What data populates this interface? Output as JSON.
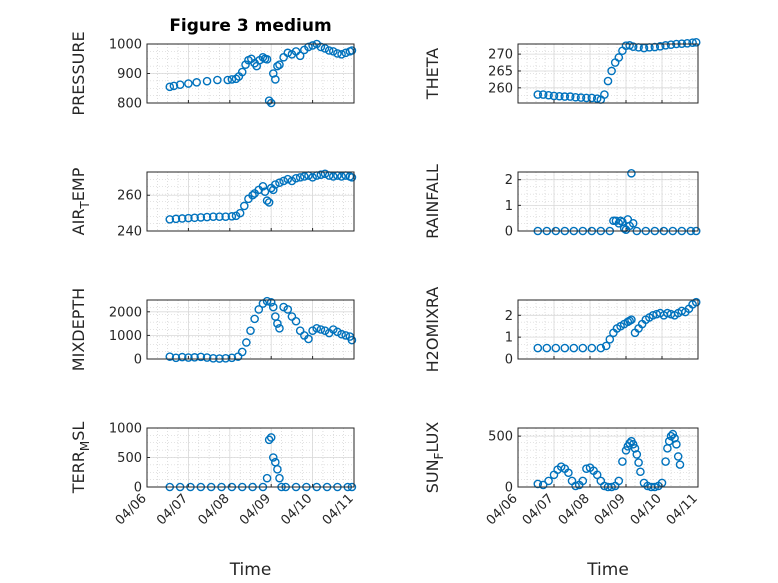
{
  "figure": {
    "title": "Figure 3 medium",
    "marker_color": "#0072BD"
  },
  "chart_data": [
    {
      "id": "pressure",
      "type": "scatter",
      "title": "Figure 3 medium",
      "ylabel": "PRESSURE",
      "ylim": [
        800,
        1000
      ],
      "yticks": [
        800,
        900,
        1000
      ],
      "xlim": [
        0,
        5
      ],
      "xticks": [],
      "xlabel": "",
      "grid": "on",
      "series": [
        {
          "x": [
            0.55,
            0.65,
            0.8,
            1.0,
            1.2,
            1.45,
            1.7,
            1.95,
            2.05,
            2.15,
            2.22,
            2.3,
            2.38,
            2.45,
            2.52,
            2.6,
            2.65,
            2.72,
            2.8,
            2.85,
            2.9,
            2.95,
            3.0,
            3.05,
            3.1,
            3.15,
            3.2,
            3.3,
            3.4,
            3.5,
            3.6,
            3.7,
            3.8,
            3.9,
            4.0,
            4.1,
            4.2,
            4.3,
            4.4,
            4.5,
            4.6,
            4.7,
            4.8,
            4.9,
            4.95
          ],
          "y": [
            855,
            858,
            862,
            866,
            870,
            874,
            878,
            878,
            880,
            882,
            890,
            905,
            930,
            945,
            950,
            935,
            925,
            945,
            955,
            950,
            948,
            808,
            800,
            900,
            880,
            925,
            930,
            955,
            970,
            965,
            975,
            960,
            980,
            990,
            995,
            1000,
            990,
            985,
            978,
            975,
            968,
            965,
            970,
            975,
            978
          ]
        }
      ]
    },
    {
      "id": "theta",
      "type": "scatter",
      "ylabel": "THETA",
      "ylim": [
        255.5,
        273
      ],
      "yticks": [
        260,
        265,
        270
      ],
      "xlim": [
        0,
        5
      ],
      "xticks": [],
      "xlabel": "",
      "grid": "on",
      "series": [
        {
          "x": [
            0.55,
            0.7,
            0.85,
            1.0,
            1.15,
            1.3,
            1.45,
            1.6,
            1.75,
            1.9,
            2.05,
            2.2,
            2.3,
            2.4,
            2.5,
            2.6,
            2.7,
            2.8,
            2.9,
            3.0,
            3.1,
            3.2,
            3.35,
            3.5,
            3.65,
            3.8,
            3.95,
            4.1,
            4.25,
            4.4,
            4.55,
            4.7,
            4.85,
            4.95
          ],
          "y": [
            258,
            258,
            257.8,
            257.6,
            257.5,
            257.4,
            257.4,
            257.2,
            257.1,
            257,
            257,
            256.8,
            256.5,
            258,
            262,
            265,
            267.5,
            269,
            271,
            272.5,
            272.6,
            272.2,
            272,
            271.8,
            272,
            272.1,
            272.3,
            272.6,
            272.8,
            273,
            273.1,
            273.2,
            273.4,
            273.5
          ]
        }
      ]
    },
    {
      "id": "air_temp",
      "type": "scatter",
      "ylabel": "AIR_TEMP",
      "ylim": [
        240,
        273
      ],
      "yticks": [
        240,
        260
      ],
      "xlim": [
        0,
        5
      ],
      "xticks": [],
      "xlabel": "",
      "grid": "on",
      "series": [
        {
          "x": [
            0.55,
            0.7,
            0.85,
            1.0,
            1.15,
            1.3,
            1.45,
            1.6,
            1.75,
            1.9,
            2.05,
            2.15,
            2.25,
            2.35,
            2.45,
            2.55,
            2.6,
            2.7,
            2.8,
            2.85,
            2.9,
            2.95,
            3.0,
            3.05,
            3.1,
            3.2,
            3.3,
            3.4,
            3.5,
            3.6,
            3.7,
            3.8,
            3.9,
            4.0,
            4.1,
            4.2,
            4.3,
            4.4,
            4.5,
            4.6,
            4.7,
            4.8,
            4.9,
            4.95
          ],
          "y": [
            246.5,
            246.8,
            247,
            247.2,
            247.4,
            247.6,
            247.8,
            248,
            248,
            248,
            248.2,
            248.5,
            250,
            254,
            258,
            260,
            261,
            263,
            265,
            262,
            257,
            256,
            264,
            263,
            266,
            267,
            268,
            269,
            268,
            269.5,
            270,
            270.5,
            271,
            270,
            271,
            271.5,
            272,
            271,
            270.5,
            271,
            270.5,
            271,
            270.5,
            270
          ]
        }
      ]
    },
    {
      "id": "rainfall",
      "type": "scatter",
      "ylabel": "RAINFALL",
      "ylim": [
        0,
        2.3
      ],
      "yticks": [
        0,
        1,
        2
      ],
      "xlim": [
        0,
        5
      ],
      "xticks": [],
      "xlabel": "",
      "grid": "on",
      "series": [
        {
          "x": [
            0.55,
            0.8,
            1.05,
            1.3,
            1.55,
            1.8,
            2.05,
            2.3,
            2.55,
            2.65,
            2.72,
            2.8,
            2.85,
            2.9,
            2.95,
            3.0,
            3.05,
            3.1,
            3.15,
            3.2,
            3.3,
            3.55,
            3.8,
            4.05,
            4.3,
            4.55,
            4.8,
            4.95
          ],
          "y": [
            0,
            0,
            0,
            0,
            0,
            0,
            0,
            0,
            0,
            0.4,
            0.4,
            0.3,
            0.4,
            0.35,
            0.1,
            0.05,
            0.45,
            0.2,
            2.25,
            0.3,
            0,
            0,
            0,
            0,
            0,
            0,
            0,
            0
          ]
        }
      ]
    },
    {
      "id": "mixdepth",
      "type": "scatter",
      "ylabel": "MIXDEPTH",
      "ylim": [
        0,
        2500
      ],
      "yticks": [
        0,
        1000,
        2000
      ],
      "xlim": [
        0,
        5
      ],
      "xticks": [],
      "xlabel": "",
      "grid": "on",
      "series": [
        {
          "x": [
            0.55,
            0.7,
            0.85,
            1.0,
            1.15,
            1.3,
            1.45,
            1.6,
            1.75,
            1.9,
            2.05,
            2.2,
            2.3,
            2.4,
            2.5,
            2.6,
            2.7,
            2.8,
            2.9,
            3.0,
            3.05,
            3.1,
            3.15,
            3.2,
            3.3,
            3.4,
            3.5,
            3.6,
            3.7,
            3.8,
            3.9,
            4.0,
            4.1,
            4.2,
            4.3,
            4.4,
            4.5,
            4.6,
            4.7,
            4.8,
            4.9,
            4.95
          ],
          "y": [
            100,
            50,
            80,
            60,
            70,
            90,
            60,
            30,
            20,
            30,
            50,
            100,
            300,
            700,
            1200,
            1700,
            2100,
            2350,
            2450,
            2400,
            2200,
            1800,
            1500,
            1300,
            2200,
            2100,
            1800,
            1600,
            1200,
            1000,
            850,
            1200,
            1300,
            1250,
            1200,
            1100,
            1250,
            1150,
            1050,
            1000,
            950,
            800
          ]
        }
      ]
    },
    {
      "id": "h2omixra",
      "type": "scatter",
      "ylabel": "H2OMIXRA",
      "ylim": [
        0,
        2.7
      ],
      "yticks": [
        0,
        1,
        2
      ],
      "xlim": [
        0,
        5
      ],
      "xticks": [],
      "xlabel": "",
      "grid": "on",
      "series": [
        {
          "x": [
            0.55,
            0.8,
            1.05,
            1.3,
            1.55,
            1.8,
            2.05,
            2.3,
            2.45,
            2.55,
            2.65,
            2.75,
            2.85,
            2.95,
            3.05,
            3.1,
            3.15,
            3.25,
            3.35,
            3.45,
            3.55,
            3.65,
            3.75,
            3.85,
            3.95,
            4.05,
            4.15,
            4.25,
            4.35,
            4.45,
            4.55,
            4.65,
            4.75,
            4.85,
            4.95
          ],
          "y": [
            0.5,
            0.5,
            0.5,
            0.5,
            0.5,
            0.5,
            0.5,
            0.5,
            0.6,
            0.9,
            1.2,
            1.4,
            1.5,
            1.6,
            1.7,
            1.75,
            1.8,
            1.2,
            1.4,
            1.6,
            1.8,
            1.9,
            2.0,
            2.05,
            2.1,
            2.0,
            2.1,
            2.05,
            2.0,
            2.1,
            2.2,
            2.15,
            2.3,
            2.5,
            2.6
          ]
        }
      ]
    },
    {
      "id": "terr_msl",
      "type": "scatter",
      "ylabel": "TERR_MSL",
      "ylim": [
        0,
        1000
      ],
      "yticks": [
        0,
        500,
        1000
      ],
      "xlim": [
        0,
        5
      ],
      "xticks": [
        0,
        1,
        2,
        3,
        4,
        5
      ],
      "xticklabels": [
        "04/06",
        "04/07",
        "04/08",
        "04/09",
        "04/10",
        "04/11"
      ],
      "xlabel": "Time",
      "grid": "on",
      "series": [
        {
          "x": [
            0.55,
            0.8,
            1.05,
            1.3,
            1.55,
            1.8,
            2.05,
            2.3,
            2.55,
            2.8,
            2.9,
            2.95,
            3.0,
            3.05,
            3.1,
            3.15,
            3.2,
            3.25,
            3.35,
            3.6,
            3.85,
            4.1,
            4.35,
            4.6,
            4.85,
            4.95
          ],
          "y": [
            0,
            0,
            0,
            0,
            0,
            0,
            0,
            0,
            0,
            0,
            150,
            800,
            840,
            500,
            420,
            300,
            150,
            0,
            0,
            0,
            0,
            0,
            0,
            0,
            0,
            0
          ]
        }
      ]
    },
    {
      "id": "sun_flux",
      "type": "scatter",
      "ylabel": "SUN_FLUX",
      "ylim": [
        0,
        580
      ],
      "yticks": [
        0,
        500
      ],
      "xlim": [
        0,
        5
      ],
      "xticks": [
        0,
        1,
        2,
        3,
        4,
        5
      ],
      "xticklabels": [
        "04/06",
        "04/07",
        "04/08",
        "04/09",
        "04/10",
        "04/11"
      ],
      "xlabel": "Time",
      "grid": "on",
      "series": [
        {
          "x": [
            0.55,
            0.7,
            0.85,
            1.0,
            1.1,
            1.2,
            1.3,
            1.4,
            1.5,
            1.6,
            1.7,
            1.8,
            1.9,
            2.0,
            2.1,
            2.2,
            2.3,
            2.4,
            2.5,
            2.6,
            2.7,
            2.8,
            2.9,
            3.0,
            3.05,
            3.1,
            3.15,
            3.2,
            3.25,
            3.3,
            3.35,
            3.4,
            3.5,
            3.6,
            3.7,
            3.8,
            3.9,
            4.0,
            4.1,
            4.15,
            4.2,
            4.25,
            4.3,
            4.35,
            4.4,
            4.45,
            4.5
          ],
          "y": [
            30,
            20,
            60,
            120,
            170,
            200,
            180,
            140,
            60,
            10,
            20,
            60,
            180,
            190,
            160,
            120,
            60,
            10,
            0,
            0,
            10,
            60,
            250,
            360,
            400,
            430,
            450,
            420,
            380,
            320,
            240,
            150,
            40,
            10,
            0,
            0,
            10,
            40,
            250,
            380,
            450,
            500,
            520,
            480,
            420,
            300,
            220
          ]
        }
      ]
    }
  ]
}
